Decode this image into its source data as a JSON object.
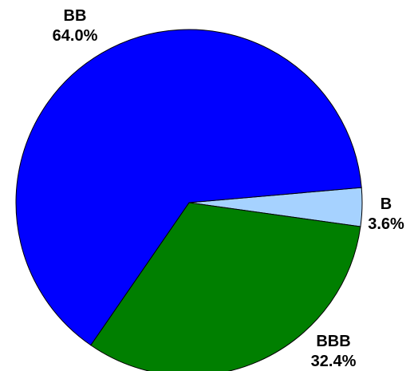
{
  "chart_data": {
    "type": "pie",
    "slices": [
      {
        "label": "B",
        "value": 3.6,
        "value_label": "3.6%",
        "color": "#a6d2ff"
      },
      {
        "label": "BBB",
        "value": 32.4,
        "value_label": "32.4%",
        "color": "#007f00"
      },
      {
        "label": "BB",
        "value": 64.0,
        "value_label": "64.0%",
        "color": "#0000ff"
      }
    ],
    "start_angle_deg": -5.0,
    "direction": "clockwise",
    "outline_color": "#000000",
    "legend": "none"
  }
}
